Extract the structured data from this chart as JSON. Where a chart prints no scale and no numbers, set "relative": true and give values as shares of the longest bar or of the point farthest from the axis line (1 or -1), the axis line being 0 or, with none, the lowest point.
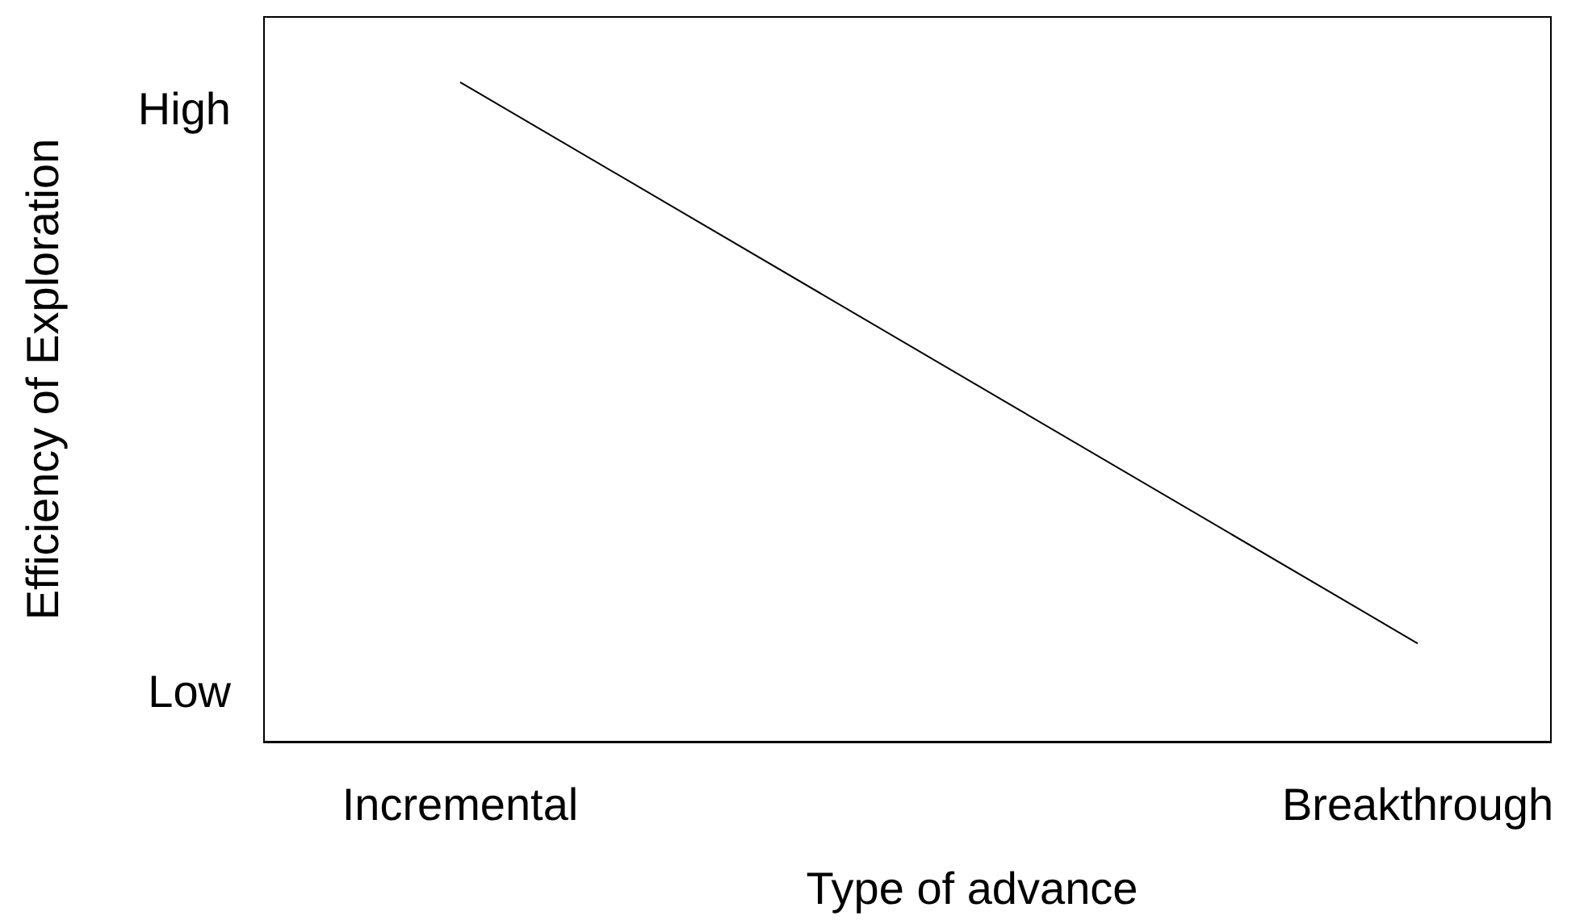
{
  "chart_data": {
    "type": "line",
    "xlabel": "Type of advance",
    "ylabel": "Efficiency of Exploration",
    "relative": true,
    "categories": [
      "Incremental",
      "Breakthrough"
    ],
    "series": [
      {
        "color": "#000000",
        "values": [
          1,
          0.15
        ]
      }
    ],
    "annotations": [
      "High",
      "Low"
    ],
    "grid": false,
    "legend": false,
    "marker": "none",
    "line_style": "solid"
  }
}
